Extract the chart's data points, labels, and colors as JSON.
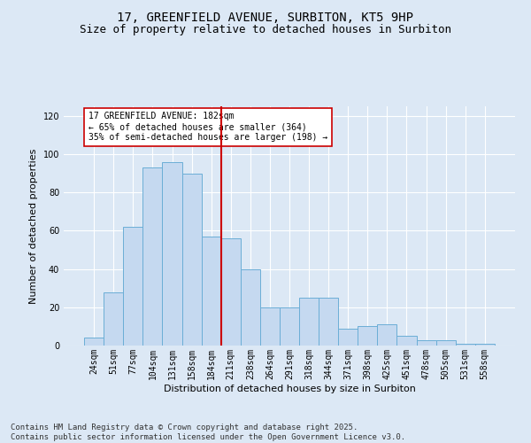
{
  "title": "17, GREENFIELD AVENUE, SURBITON, KT5 9HP",
  "subtitle": "Size of property relative to detached houses in Surbiton",
  "xlabel": "Distribution of detached houses by size in Surbiton",
  "ylabel": "Number of detached properties",
  "categories": [
    "24sqm",
    "51sqm",
    "77sqm",
    "104sqm",
    "131sqm",
    "158sqm",
    "184sqm",
    "211sqm",
    "238sqm",
    "264sqm",
    "291sqm",
    "318sqm",
    "344sqm",
    "371sqm",
    "398sqm",
    "425sqm",
    "451sqm",
    "478sqm",
    "505sqm",
    "531sqm",
    "558sqm"
  ],
  "values": [
    4,
    28,
    62,
    93,
    96,
    90,
    57,
    56,
    40,
    20,
    20,
    25,
    25,
    9,
    10,
    11,
    5,
    3,
    3,
    1,
    1
  ],
  "bar_color": "#c5d9f0",
  "bar_edge_color": "#6baed6",
  "vline_color": "#cc0000",
  "annotation_text": "17 GREENFIELD AVENUE: 182sqm\n← 65% of detached houses are smaller (364)\n35% of semi-detached houses are larger (198) →",
  "annotation_box_color": "#ffffff",
  "annotation_box_edge": "#cc0000",
  "ylim": [
    0,
    125
  ],
  "yticks": [
    0,
    20,
    40,
    60,
    80,
    100,
    120
  ],
  "footer": "Contains HM Land Registry data © Crown copyright and database right 2025.\nContains public sector information licensed under the Open Government Licence v3.0.",
  "bg_color": "#dce8f5",
  "plot_bg_color": "#dce8f5",
  "title_fontsize": 10,
  "subtitle_fontsize": 9,
  "footer_fontsize": 6.5,
  "tick_fontsize": 7,
  "axis_label_fontsize": 8
}
